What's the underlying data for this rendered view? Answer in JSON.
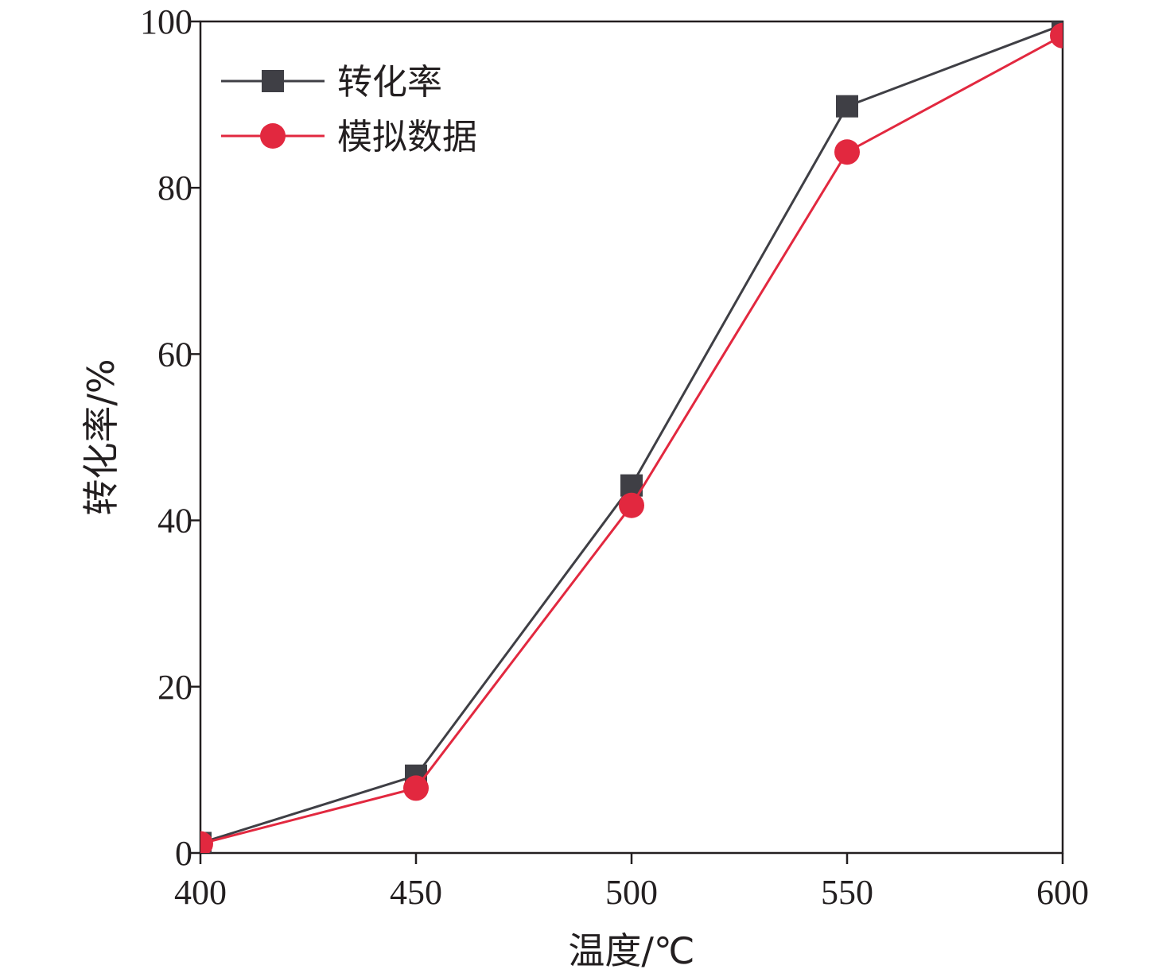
{
  "chart_data": {
    "type": "line",
    "title": "",
    "xlabel": "温度/℃",
    "ylabel": "转化率/%",
    "x": [
      400,
      450,
      500,
      550,
      600
    ],
    "xlim": [
      400,
      600
    ],
    "ylim": [
      0,
      100
    ],
    "xticks": [
      "400",
      "450",
      "500",
      "550",
      "600"
    ],
    "yticks": [
      "0",
      "20",
      "40",
      "60",
      "80",
      "100"
    ],
    "grid": false,
    "legend_position": "top-left",
    "series": [
      {
        "name": "转化率",
        "values": [
          1.2,
          9.3,
          44.2,
          89.8,
          99.6
        ],
        "color": "#3f3f45",
        "marker": "square"
      },
      {
        "name": "模拟数据",
        "values": [
          1.1,
          7.8,
          41.8,
          84.3,
          98.3
        ],
        "color": "#e2283f",
        "marker": "circle"
      }
    ]
  }
}
